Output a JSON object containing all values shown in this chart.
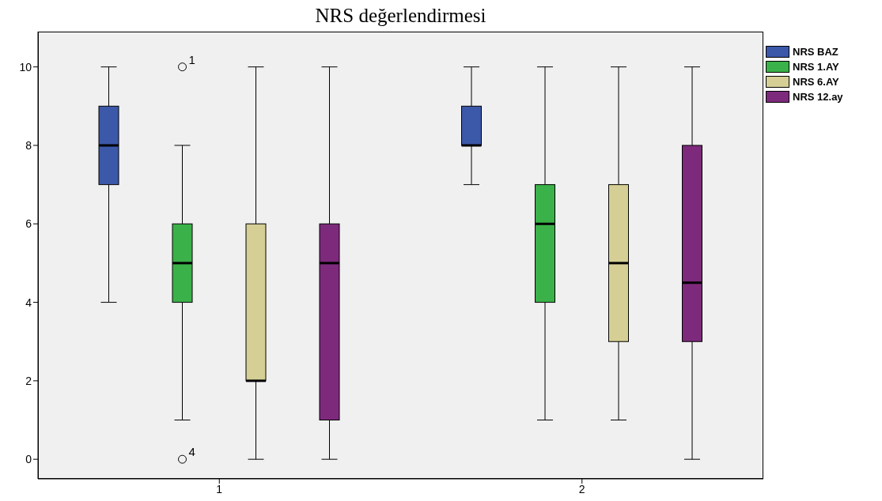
{
  "chart_data": {
    "type": "box",
    "title": "NRS değerlendirmesi",
    "categories": [
      "1",
      "2"
    ],
    "series": [
      {
        "name": "NRS BAZ",
        "color": "#3c58a8",
        "boxes": [
          {
            "low": 4,
            "q1": 7,
            "median": 8,
            "q3": 9,
            "high": 10
          },
          {
            "low": 7,
            "q1": 8,
            "median": 8,
            "q3": 9,
            "high": 10
          }
        ]
      },
      {
        "name": "NRS 1.AY",
        "color": "#3bb149",
        "boxes": [
          {
            "low": 1,
            "q1": 4,
            "median": 5,
            "q3": 6,
            "high": 8,
            "outliers": [
              10,
              0
            ]
          },
          {
            "low": 1,
            "q1": 4,
            "median": 6,
            "q3": 7,
            "high": 10
          }
        ]
      },
      {
        "name": "NRS 6.AY",
        "color": "#d5cf95",
        "boxes": [
          {
            "low": 0,
            "q1": 2,
            "median": 2,
            "q3": 6,
            "high": 10
          },
          {
            "low": 1,
            "q1": 3,
            "median": 5,
            "q3": 7,
            "high": 10
          }
        ]
      },
      {
        "name": "NRS 12.ay",
        "color": "#7d2a7c",
        "boxes": [
          {
            "low": 0,
            "q1": 1,
            "median": 5,
            "q3": 6,
            "high": 10
          },
          {
            "low": 0,
            "q1": 3,
            "median": 4.5,
            "q3": 8,
            "high": 10
          }
        ]
      }
    ],
    "annotations": [
      "1",
      "4"
    ],
    "ylim": [
      -0.5,
      10.9
    ],
    "yticks": [
      0,
      2,
      4,
      6,
      8,
      10
    ],
    "legend": "top right"
  }
}
